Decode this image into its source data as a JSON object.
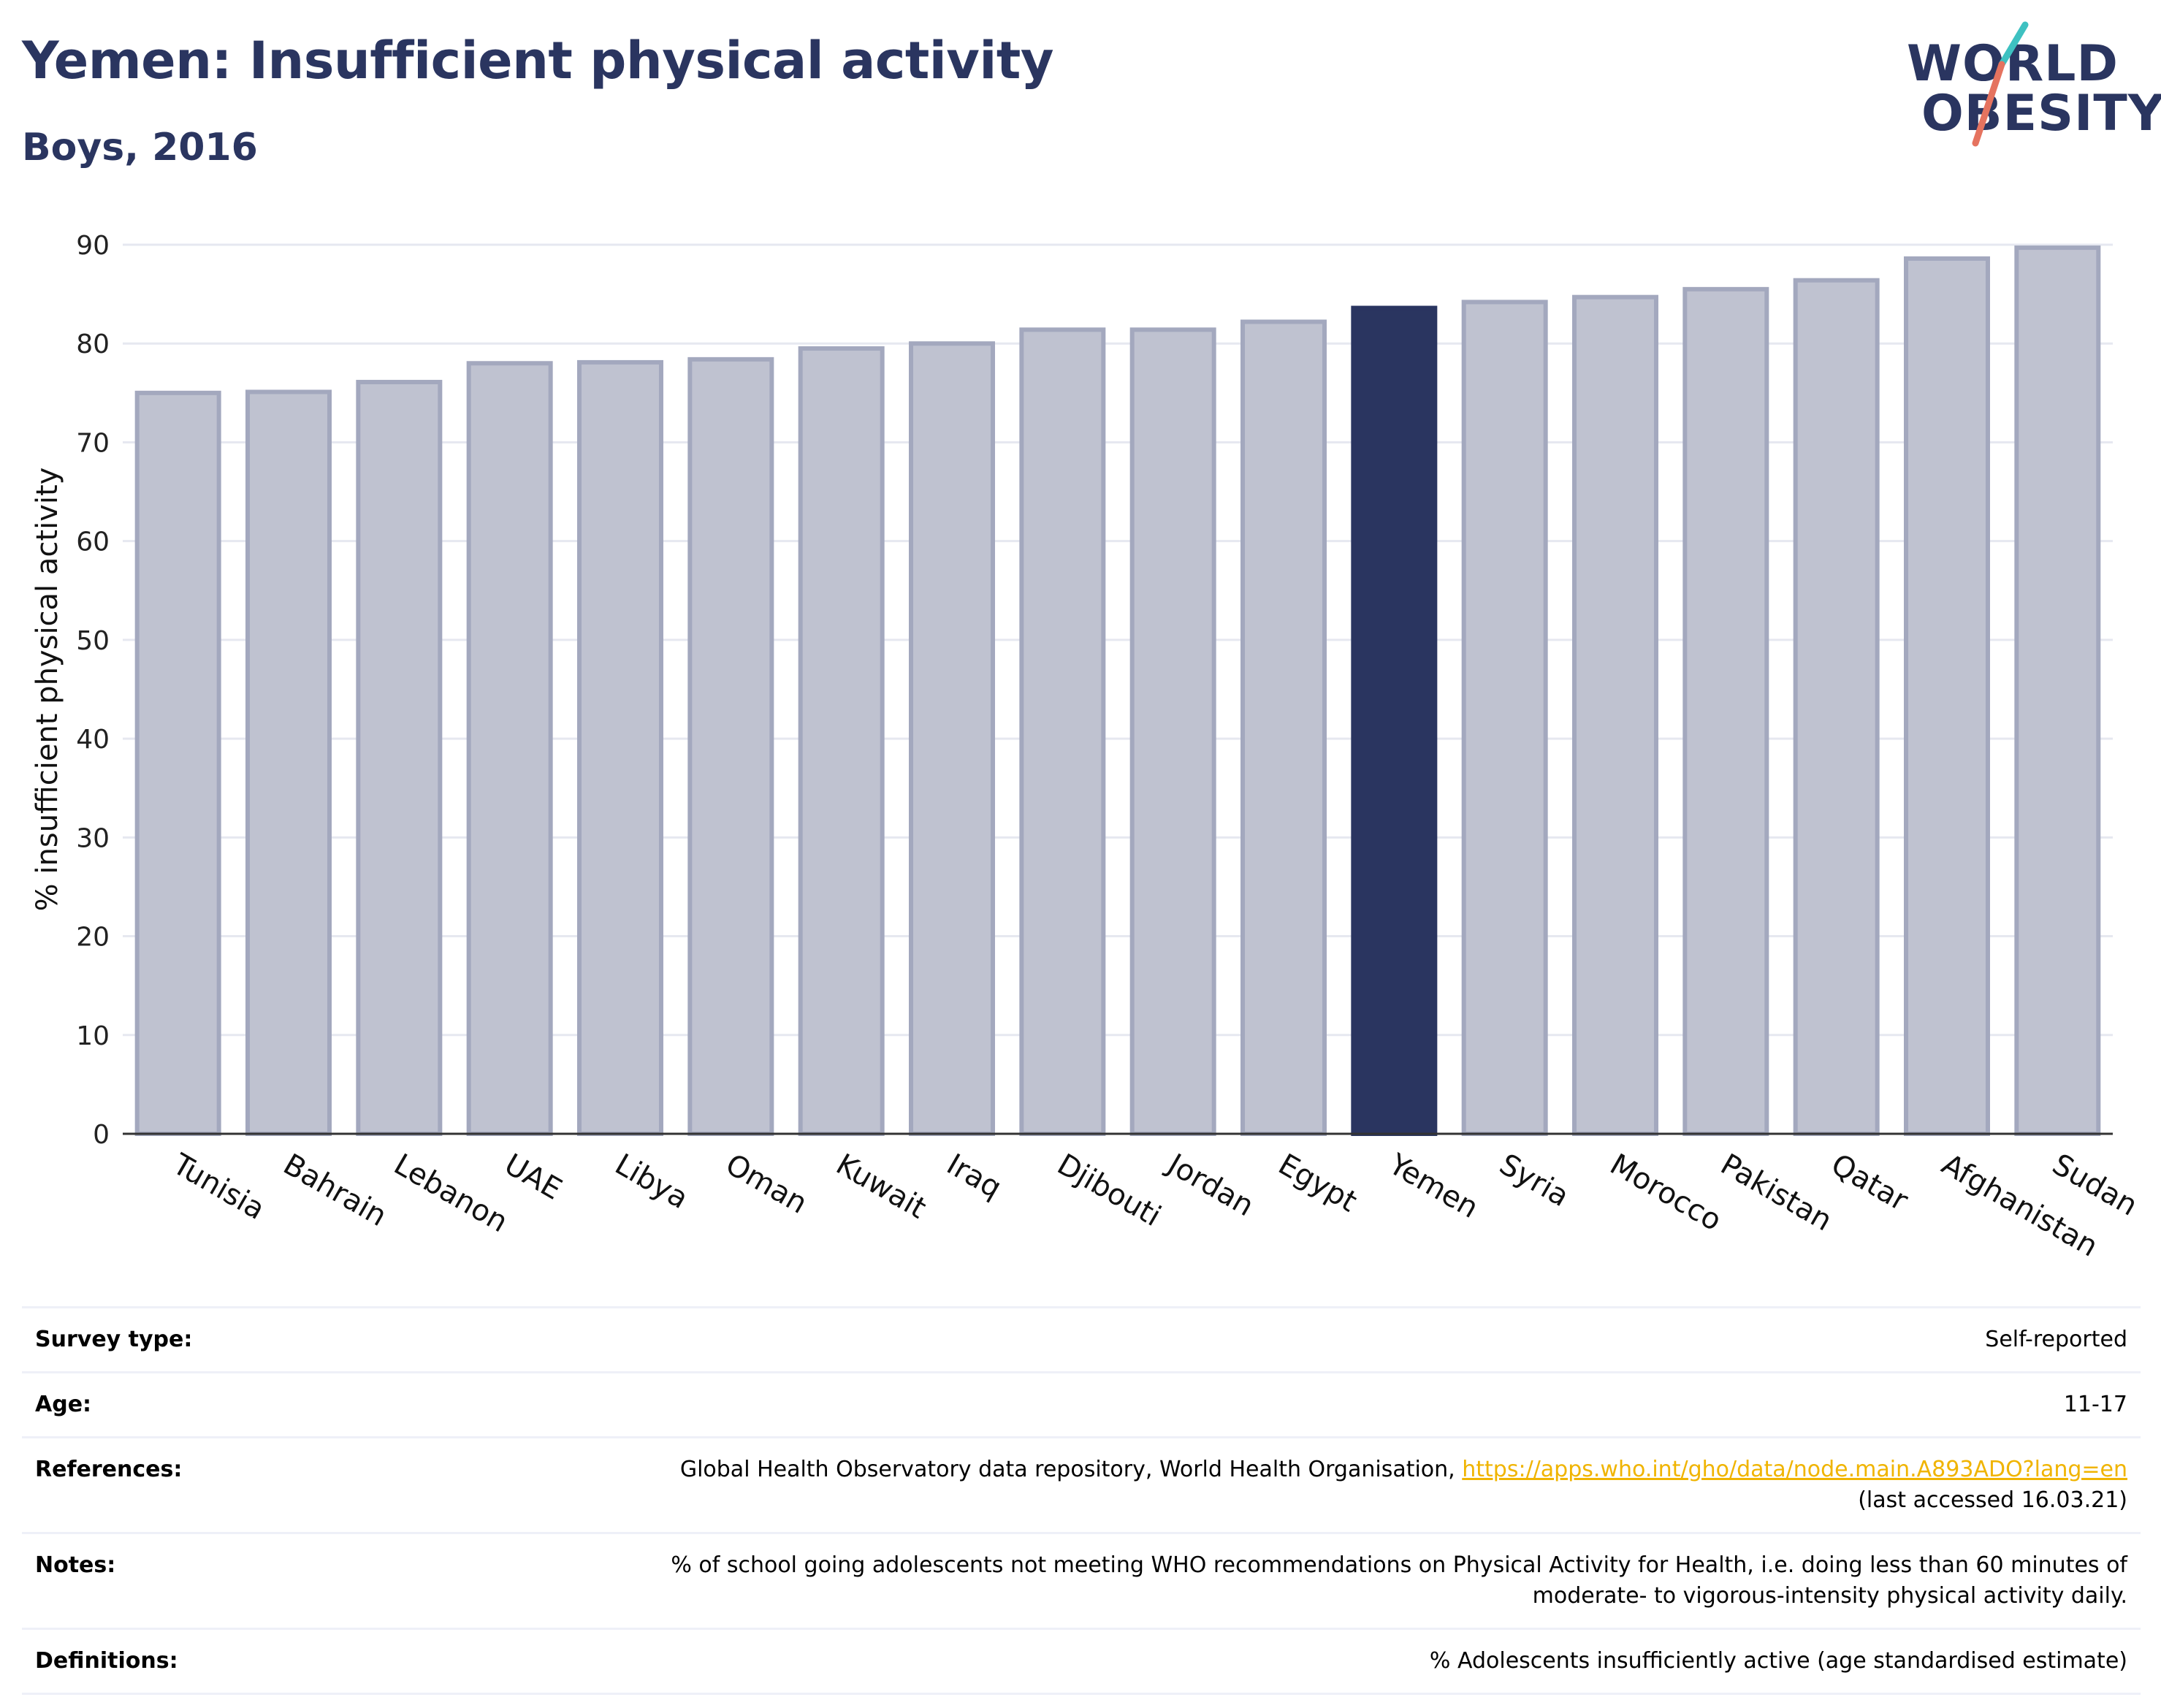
{
  "header": {
    "title": "Yemen: Insufficient physical activity",
    "subtitle": "Boys, 2016"
  },
  "logo": {
    "line1": "WORLD",
    "line2": "OBESITY",
    "colors": {
      "text": "#2a3560",
      "slash_top": "#3ec1c1",
      "slash_bottom": "#e5735f"
    }
  },
  "chart_data": {
    "type": "bar",
    "categories": [
      "Tunisia",
      "Bahrain",
      "Lebanon",
      "UAE",
      "Libya",
      "Oman",
      "Kuwait",
      "Iraq",
      "Djibouti",
      "Jordan",
      "Egypt",
      "Yemen",
      "Syria",
      "Morocco",
      "Pakistan",
      "Qatar",
      "Afghanistan",
      "Sudan"
    ],
    "values": [
      75.0,
      75.1,
      76.1,
      78.0,
      78.1,
      78.4,
      79.5,
      80.0,
      81.4,
      81.4,
      82.2,
      83.6,
      84.2,
      84.7,
      85.5,
      86.4,
      88.6,
      89.7
    ],
    "highlight": "Yemen",
    "title": "",
    "xlabel": "",
    "ylabel": "% insufficient physical activity",
    "ylim": [
      0,
      90
    ],
    "yticks": [
      0,
      10,
      20,
      30,
      40,
      50,
      60,
      70,
      80,
      90
    ],
    "grid": true,
    "colors": {
      "bar": "#bfc2d0",
      "bar_border": "#a3a8be",
      "highlight": "#2a3560",
      "grid": "#e6e8f0",
      "axis": "#333333"
    }
  },
  "info": [
    {
      "label": "Survey type:",
      "value": "Self-reported"
    },
    {
      "label": "Age:",
      "value": "11-17"
    },
    {
      "label": "References:",
      "value": "Global Health Observatory data repository, World Health Organisation,",
      "link": "https://apps.who.int/gho/data/node.main.A893ADO?lang=en",
      "value2": "(last accessed 16.03.21)"
    },
    {
      "label": "Notes:",
      "value": "% of school going adolescents not meeting WHO recommendations on Physical Activity for Health, i.e. doing less than 60 minutes of",
      "value2": "moderate- to vigorous-intensity physical activity daily."
    },
    {
      "label": "Definitions:",
      "value": "% Adolescents insufficiently active (age standardised estimate)"
    }
  ]
}
